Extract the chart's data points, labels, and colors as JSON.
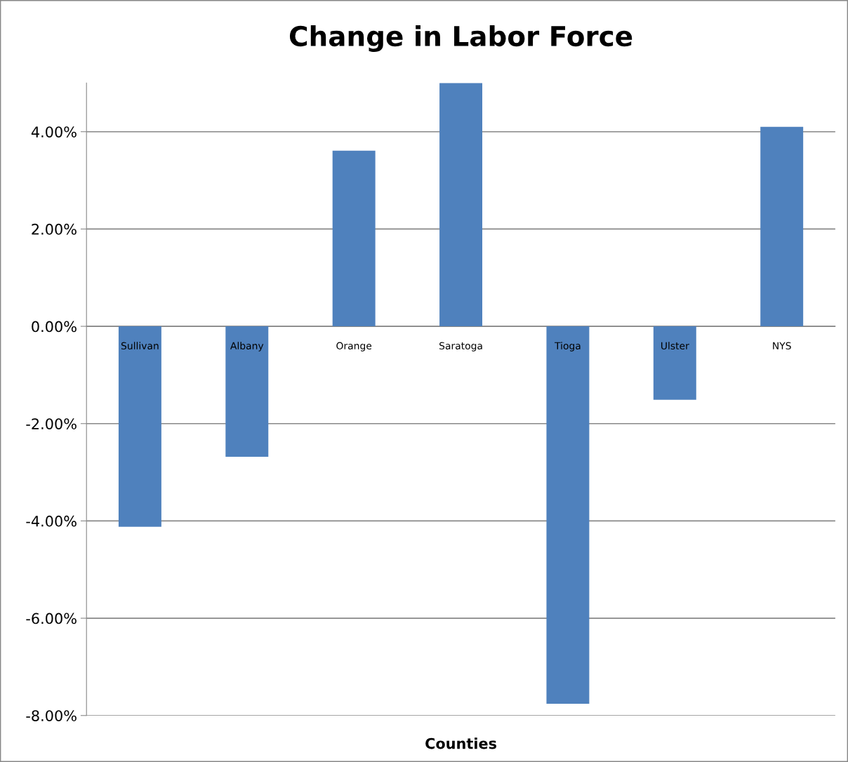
{
  "chart_data": {
    "type": "bar",
    "title": "Change in Labor Force",
    "xlabel": "Counties",
    "categories": [
      "Sullivan",
      "Albany",
      "Orange",
      "Saratoga",
      "Tioga",
      "Ulster",
      "NYS"
    ],
    "values": [
      -4.12,
      -2.68,
      3.61,
      5.0,
      -7.76,
      -1.51,
      4.1
    ],
    "color": "#4f81bd",
    "ylim": [
      -8,
      5
    ],
    "yticks": [
      {
        "value": -8,
        "label": "-8.00%"
      },
      {
        "value": -6,
        "label": "-6.00%"
      },
      {
        "value": -4,
        "label": "-4.00%"
      },
      {
        "value": -2,
        "label": "-2.00%"
      },
      {
        "value": 0,
        "label": "0.00%"
      },
      {
        "value": 2,
        "label": "2.00%"
      },
      {
        "value": 4,
        "label": "4.00%"
      }
    ],
    "grid": "y",
    "legend": false
  }
}
